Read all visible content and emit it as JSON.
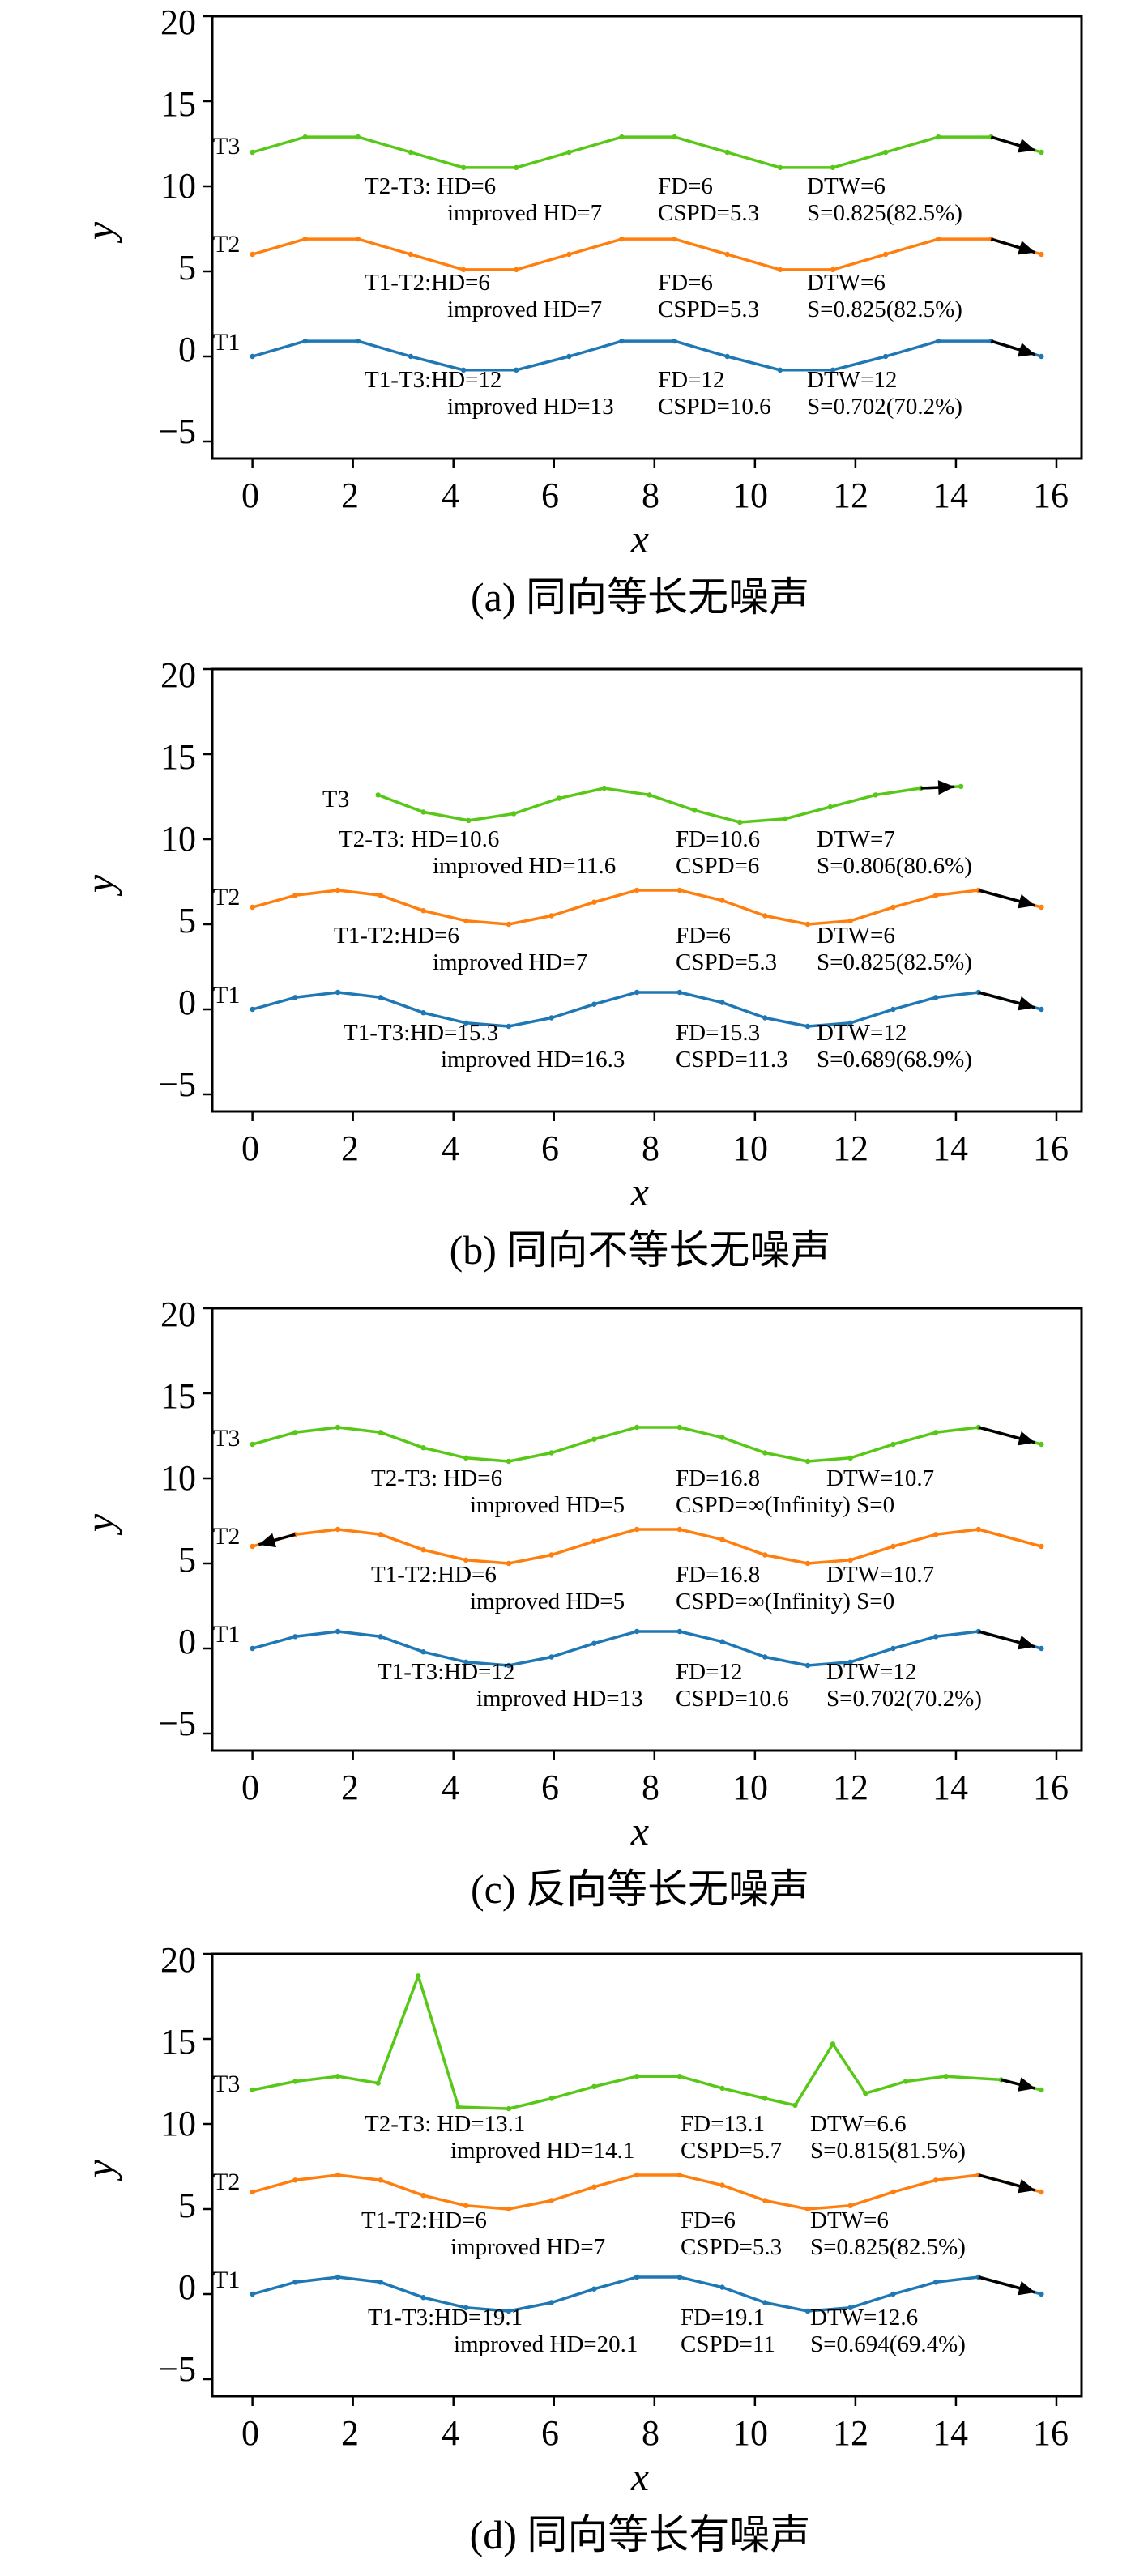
{
  "chart_data": [
    {
      "type": "line",
      "caption": "(a) 同向等长无噪声",
      "xlabel": "x",
      "ylabel": "y",
      "xlim": [
        -0.8,
        16.5
      ],
      "ylim": [
        -6,
        20
      ],
      "xticks": [
        "0",
        "2",
        "4",
        "6",
        "8",
        "10",
        "12",
        "14",
        "16"
      ],
      "yticks": [
        "−5",
        "0",
        "5",
        "10",
        "15",
        "20"
      ],
      "series": [
        {
          "name": "T1",
          "color": "#1f77b4",
          "x": [
            0,
            1.05,
            2.1,
            3.15,
            4.2,
            5.25,
            6.3,
            7.35,
            8.4,
            9.45,
            10.5,
            11.55,
            12.6,
            13.65,
            14.7,
            15.7
          ],
          "y": [
            0,
            0.9,
            0.9,
            0,
            -0.8,
            -0.8,
            0,
            0.9,
            0.9,
            0,
            -0.8,
            -0.8,
            0,
            0.9,
            0.9,
            0
          ],
          "direction": "forward"
        },
        {
          "name": "T2",
          "color": "#ff7f0e",
          "x": [
            0,
            1.05,
            2.1,
            3.15,
            4.2,
            5.25,
            6.3,
            7.35,
            8.4,
            9.45,
            10.5,
            11.55,
            12.6,
            13.65,
            14.7,
            15.7
          ],
          "y": [
            6,
            6.9,
            6.9,
            6,
            5.1,
            5.1,
            6,
            6.9,
            6.9,
            6,
            5.1,
            5.1,
            6,
            6.9,
            6.9,
            6
          ],
          "direction": "forward"
        },
        {
          "name": "T3",
          "color": "#58c818",
          "x": [
            0,
            1.05,
            2.1,
            3.15,
            4.2,
            5.25,
            6.3,
            7.35,
            8.4,
            9.45,
            10.5,
            11.55,
            12.6,
            13.65,
            14.7,
            15.7
          ],
          "y": [
            12,
            12.9,
            12.9,
            12,
            11.1,
            11.1,
            12,
            12.9,
            12.9,
            12,
            11.1,
            11.1,
            12,
            12.9,
            12.9,
            12
          ],
          "direction": "forward"
        }
      ],
      "annotations": [
        [
          "T2-T3: HD=6",
          "FD=6",
          "DTW=6"
        ],
        [
          "improved HD=7",
          "CSPD=5.3",
          "S=0.825(82.5%)"
        ],
        [
          "T1-T2:HD=6",
          "FD=6",
          "DTW=6"
        ],
        [
          "improved HD=7",
          "CSPD=5.3",
          "S=0.825(82.5%)"
        ],
        [
          "T1-T3:HD=12",
          "FD=12",
          "DTW=12"
        ],
        [
          "improved HD=13",
          "CSPD=10.6",
          "S=0.702(70.2%)"
        ]
      ]
    },
    {
      "type": "line",
      "caption": "(b) 同向不等长无噪声",
      "xlabel": "x",
      "ylabel": "y",
      "xlim": [
        -0.8,
        16.5
      ],
      "ylim": [
        -6,
        20
      ],
      "xticks": [
        "0",
        "2",
        "4",
        "6",
        "8",
        "10",
        "12",
        "14",
        "16"
      ],
      "yticks": [
        "−5",
        "0",
        "5",
        "10",
        "15",
        "20"
      ],
      "series": [
        {
          "name": "T1",
          "color": "#1f77b4",
          "x": [
            0,
            0.85,
            1.7,
            2.55,
            3.4,
            4.25,
            5.1,
            5.95,
            6.8,
            7.65,
            8.5,
            9.35,
            10.2,
            11.05,
            11.9,
            12.75,
            13.6,
            14.45,
            15.7
          ],
          "y": [
            0,
            0.7,
            1,
            0.7,
            -0.2,
            -0.8,
            -1,
            -0.5,
            0.3,
            1,
            1,
            0.4,
            -0.5,
            -1,
            -0.8,
            0,
            0.7,
            1,
            0
          ],
          "direction": "forward"
        },
        {
          "name": "T2",
          "color": "#ff7f0e",
          "x": [
            0,
            0.85,
            1.7,
            2.55,
            3.4,
            4.25,
            5.1,
            5.95,
            6.8,
            7.65,
            8.5,
            9.35,
            10.2,
            11.05,
            11.9,
            12.75,
            13.6,
            14.45,
            15.7
          ],
          "y": [
            6,
            6.7,
            7,
            6.7,
            5.8,
            5.2,
            5,
            5.5,
            6.3,
            7,
            7,
            6.4,
            5.5,
            5,
            5.2,
            6,
            6.7,
            7,
            6
          ],
          "direction": "forward"
        },
        {
          "name": "T3",
          "color": "#58c818",
          "x": [
            2.5,
            3.4,
            4.3,
            5.2,
            6.1,
            7,
            7.9,
            8.8,
            9.7,
            10.6,
            11.5,
            12.4,
            13.3,
            14.1
          ],
          "y": [
            12.6,
            11.6,
            11.1,
            11.5,
            12.4,
            13,
            12.6,
            11.7,
            11,
            11.2,
            11.9,
            12.6,
            13,
            13.1
          ],
          "direction": "forward"
        }
      ],
      "annotations": [
        [
          "T2-T3: HD=10.6",
          "FD=10.6",
          "DTW=7"
        ],
        [
          "improved HD=11.6",
          "CSPD=6",
          "S=0.806(80.6%)"
        ],
        [
          "T1-T2:HD=6",
          "FD=6",
          "DTW=6"
        ],
        [
          "improved HD=7",
          "CSPD=5.3",
          "S=0.825(82.5%)"
        ],
        [
          "T1-T3:HD=15.3",
          "FD=15.3",
          "DTW=12"
        ],
        [
          "improved HD=16.3",
          "CSPD=11.3",
          "S=0.689(68.9%)"
        ]
      ]
    },
    {
      "type": "line",
      "caption": "(c) 反向等长无噪声",
      "xlabel": "x",
      "ylabel": "y",
      "xlim": [
        -0.8,
        16.5
      ],
      "ylim": [
        -6,
        20
      ],
      "xticks": [
        "0",
        "2",
        "4",
        "6",
        "8",
        "10",
        "12",
        "14",
        "16"
      ],
      "yticks": [
        "−5",
        "0",
        "5",
        "10",
        "15",
        "20"
      ],
      "series": [
        {
          "name": "T1",
          "color": "#1f77b4",
          "x": [
            0,
            0.85,
            1.7,
            2.55,
            3.4,
            4.25,
            5.1,
            5.95,
            6.8,
            7.65,
            8.5,
            9.35,
            10.2,
            11.05,
            11.9,
            12.75,
            13.6,
            14.45,
            15.7
          ],
          "y": [
            0,
            0.7,
            1,
            0.7,
            -0.2,
            -0.8,
            -1,
            -0.5,
            0.3,
            1,
            1,
            0.4,
            -0.5,
            -1,
            -0.8,
            0,
            0.7,
            1,
            0
          ],
          "direction": "forward"
        },
        {
          "name": "T2",
          "color": "#ff7f0e",
          "x": [
            0,
            0.85,
            1.7,
            2.55,
            3.4,
            4.25,
            5.1,
            5.95,
            6.8,
            7.65,
            8.5,
            9.35,
            10.2,
            11.05,
            11.9,
            12.75,
            13.6,
            14.45,
            15.7
          ],
          "y": [
            6,
            6.7,
            7,
            6.7,
            5.8,
            5.2,
            5,
            5.5,
            6.3,
            7,
            7,
            6.4,
            5.5,
            5,
            5.2,
            6,
            6.7,
            7,
            6
          ],
          "direction": "reverse"
        },
        {
          "name": "T3",
          "color": "#58c818",
          "x": [
            0,
            0.85,
            1.7,
            2.55,
            3.4,
            4.25,
            5.1,
            5.95,
            6.8,
            7.65,
            8.5,
            9.35,
            10.2,
            11.05,
            11.9,
            12.75,
            13.6,
            14.45,
            15.7
          ],
          "y": [
            12,
            12.7,
            13,
            12.7,
            11.8,
            11.2,
            11,
            11.5,
            12.3,
            13,
            13,
            12.4,
            11.5,
            11,
            11.2,
            12,
            12.7,
            13,
            12
          ],
          "direction": "forward"
        }
      ],
      "annotations": [
        [
          "T2-T3: HD=6",
          "FD=16.8",
          "DTW=10.7"
        ],
        [
          "improved HD=5",
          "CSPD=∞(Infinity) S=0",
          ""
        ],
        [
          "T1-T2:HD=6",
          "FD=16.8",
          "DTW=10.7"
        ],
        [
          "improved HD=5",
          "CSPD=∞(Infinity) S=0",
          ""
        ],
        [
          "T1-T3:HD=12",
          "FD=12",
          "DTW=12"
        ],
        [
          "improved HD=13",
          "CSPD=10.6",
          "S=0.702(70.2%)"
        ]
      ]
    },
    {
      "type": "line",
      "caption": "(d) 同向等长有噪声",
      "xlabel": "x",
      "ylabel": "y",
      "xlim": [
        -0.8,
        16.5
      ],
      "ylim": [
        -6,
        20
      ],
      "xticks": [
        "0",
        "2",
        "4",
        "6",
        "8",
        "10",
        "12",
        "14",
        "16"
      ],
      "yticks": [
        "−5",
        "0",
        "5",
        "10",
        "15",
        "20"
      ],
      "series": [
        {
          "name": "T1",
          "color": "#1f77b4",
          "x": [
            0,
            0.85,
            1.7,
            2.55,
            3.4,
            4.25,
            5.1,
            5.95,
            6.8,
            7.65,
            8.5,
            9.35,
            10.2,
            11.05,
            11.9,
            12.75,
            13.6,
            14.45,
            15.7
          ],
          "y": [
            0,
            0.7,
            1,
            0.7,
            -0.2,
            -0.8,
            -1,
            -0.5,
            0.3,
            1,
            1,
            0.4,
            -0.5,
            -1,
            -0.8,
            0,
            0.7,
            1,
            0
          ],
          "direction": "forward"
        },
        {
          "name": "T2",
          "color": "#ff7f0e",
          "x": [
            0,
            0.85,
            1.7,
            2.55,
            3.4,
            4.25,
            5.1,
            5.95,
            6.8,
            7.65,
            8.5,
            9.35,
            10.2,
            11.05,
            11.9,
            12.75,
            13.6,
            14.45,
            15.7
          ],
          "y": [
            6,
            6.7,
            7,
            6.7,
            5.8,
            5.2,
            5,
            5.5,
            6.3,
            7,
            7,
            6.4,
            5.5,
            5,
            5.2,
            6,
            6.7,
            7,
            6
          ],
          "direction": "forward"
        },
        {
          "name": "T3",
          "color": "#58c818",
          "x": [
            0,
            0.85,
            1.7,
            2.5,
            3.3,
            4.1,
            5.1,
            5.95,
            6.8,
            7.65,
            8.5,
            9.35,
            10.2,
            10.8,
            11.55,
            12.2,
            13,
            13.8,
            14.9,
            15.7
          ],
          "y": [
            12,
            12.5,
            12.8,
            12.4,
            18.7,
            11,
            10.9,
            11.5,
            12.2,
            12.8,
            12.8,
            12.1,
            11.5,
            11.1,
            14.7,
            11.8,
            12.5,
            12.8,
            12.6,
            12
          ],
          "direction": "forward"
        }
      ],
      "annotations": [
        [
          "T2-T3: HD=13.1",
          "FD=13.1",
          "DTW=6.6"
        ],
        [
          "improved HD=14.1",
          "CSPD=5.7",
          "S=0.815(81.5%)"
        ],
        [
          "T1-T2:HD=6",
          "FD=6",
          "DTW=6"
        ],
        [
          "improved HD=7",
          "CSPD=5.3",
          "S=0.825(82.5%)"
        ],
        [
          "T1-T3:HD=19.1",
          "FD=19.1",
          "DTW=12.6"
        ],
        [
          "improved HD=20.1",
          "CSPD=11",
          "S=0.694(69.4%)"
        ]
      ]
    }
  ]
}
